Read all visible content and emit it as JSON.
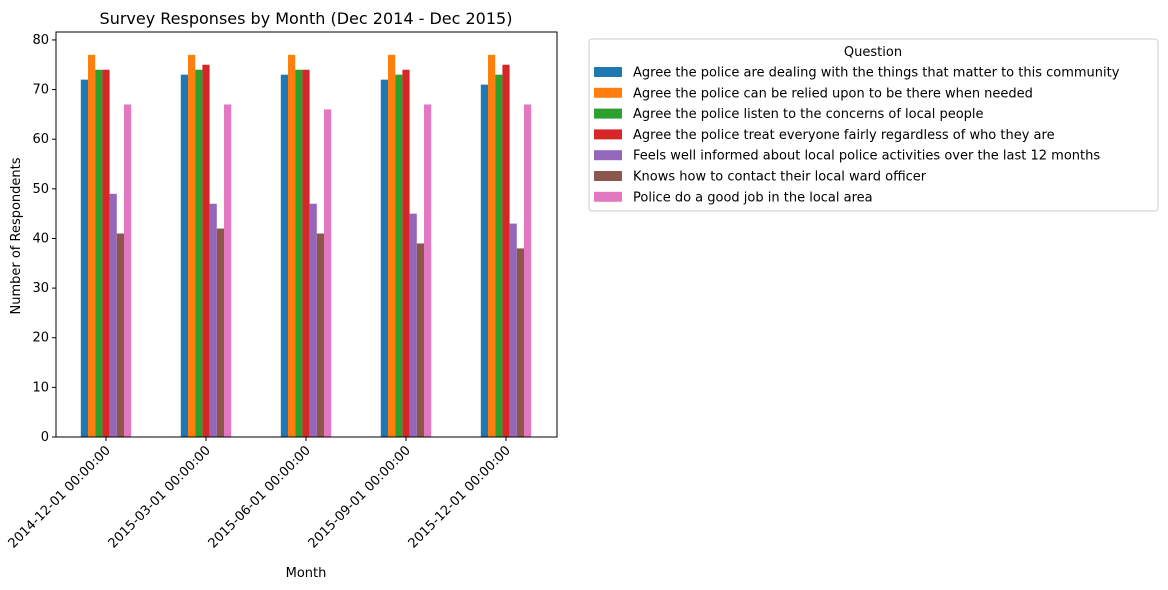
{
  "chart_data": {
    "type": "bar",
    "title": "Survey Responses by Month (Dec 2014 - Dec 2015)",
    "xlabel": "Month",
    "ylabel": "Number of Respondents",
    "categories": [
      "2014-12-01 00:00:00",
      "2015-03-01 00:00:00",
      "2015-06-01 00:00:00",
      "2015-09-01 00:00:00",
      "2015-12-01 00:00:00"
    ],
    "ylim": [
      0,
      81.6
    ],
    "yticks": [
      0,
      10,
      20,
      30,
      40,
      50,
      60,
      70,
      80
    ],
    "grid": false,
    "legend_title": "Question",
    "legend_placement": "outside top-right",
    "series": [
      {
        "name": "Agree the police are dealing with the things that matter to this community",
        "color": "#1f77b4",
        "values": [
          72,
          73,
          73,
          72,
          71
        ]
      },
      {
        "name": "Agree the police can be relied upon to be there when needed",
        "color": "#ff7f0e",
        "values": [
          77,
          77,
          77,
          77,
          77
        ]
      },
      {
        "name": "Agree the police listen to the concerns of local people",
        "color": "#2ca02c",
        "values": [
          74,
          74,
          74,
          73,
          73
        ]
      },
      {
        "name": "Agree the police treat everyone fairly regardless of who they are",
        "color": "#d62728",
        "values": [
          74,
          75,
          74,
          74,
          75
        ]
      },
      {
        "name": "Feels well informed about local police activities over the last 12 months",
        "color": "#9467bd",
        "values": [
          49,
          47,
          47,
          45,
          43
        ]
      },
      {
        "name": "Knows how to contact their local ward officer",
        "color": "#8c564b",
        "values": [
          41,
          42,
          41,
          39,
          38
        ]
      },
      {
        "name": "Police do a good job in the local area",
        "color": "#e377c2",
        "values": [
          67,
          67,
          66,
          67,
          67
        ]
      }
    ]
  }
}
